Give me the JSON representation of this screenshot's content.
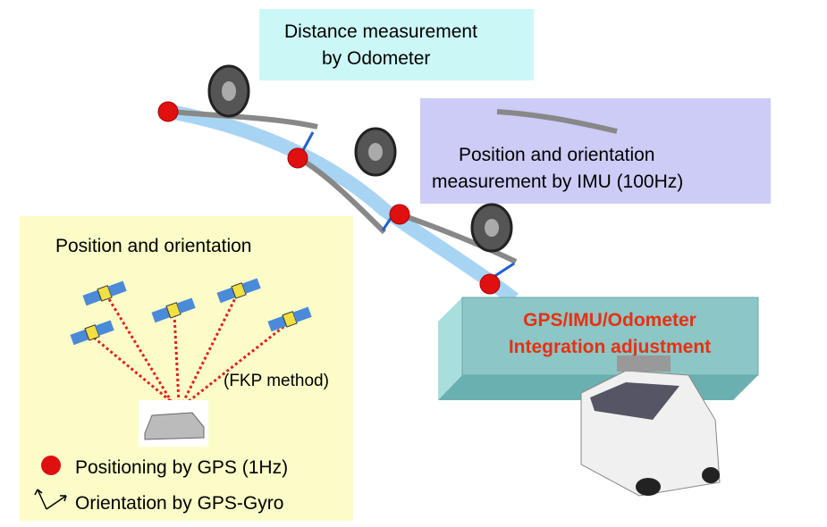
{
  "odometer_box": {
    "line1": "Distance measurement",
    "line2": "by Odometer"
  },
  "imu_box": {
    "line1": "Position and orientation",
    "line2": "measurement by IMU (100Hz)"
  },
  "gps_box": {
    "title": "Position and orientation",
    "method": "(FKP method)",
    "legend": {
      "positioning": "Positioning by GPS (1Hz)",
      "orientation": "Orientation by GPS-Gyro"
    }
  },
  "integration_box": {
    "line1": "GPS/IMU/Odometer",
    "line2": "Integration adjustment"
  }
}
